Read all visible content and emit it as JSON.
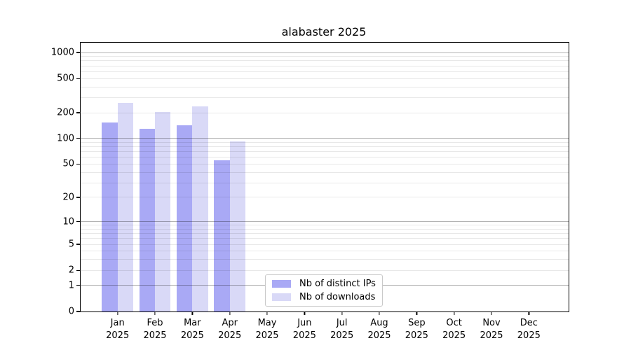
{
  "title": "alabaster 2025",
  "chart_data": {
    "type": "bar",
    "title": "alabaster 2025",
    "categories": [
      "Jan 2025",
      "Feb 2025",
      "Mar 2025",
      "Apr 2025",
      "May 2025",
      "Jun 2025",
      "Jul 2025",
      "Aug 2025",
      "Sep 2025",
      "Oct 2025",
      "Nov 2025",
      "Dec 2025"
    ],
    "series": [
      {
        "key": "distinct-ips",
        "name": "Nb of distinct IPs",
        "color": "#a9a9f5",
        "values": [
          155,
          131,
          143,
          55,
          null,
          null,
          null,
          null,
          null,
          null,
          null,
          null
        ]
      },
      {
        "key": "downloads",
        "name": "Nb of downloads",
        "color": "#d9d9f7",
        "values": [
          259,
          204,
          236,
          93,
          null,
          null,
          null,
          null,
          null,
          null,
          null,
          null
        ]
      }
    ],
    "xlabel": "",
    "ylabel": "",
    "yscale": "log1p",
    "ylim": [
      0,
      1300
    ],
    "yticks": [
      {
        "v": 0,
        "label": "0"
      },
      {
        "v": 1,
        "label": "1"
      },
      {
        "v": 2,
        "label": "2"
      },
      {
        "v": 5,
        "label": "5"
      },
      {
        "v": 10,
        "label": "10"
      },
      {
        "v": 20,
        "label": "20"
      },
      {
        "v": 50,
        "label": "50"
      },
      {
        "v": 100,
        "label": "100"
      },
      {
        "v": 200,
        "label": "200"
      },
      {
        "v": 500,
        "label": "500"
      },
      {
        "v": 1000,
        "label": "1000"
      }
    ],
    "grid": "major+minor",
    "legend_position": "inside-lower-center"
  }
}
